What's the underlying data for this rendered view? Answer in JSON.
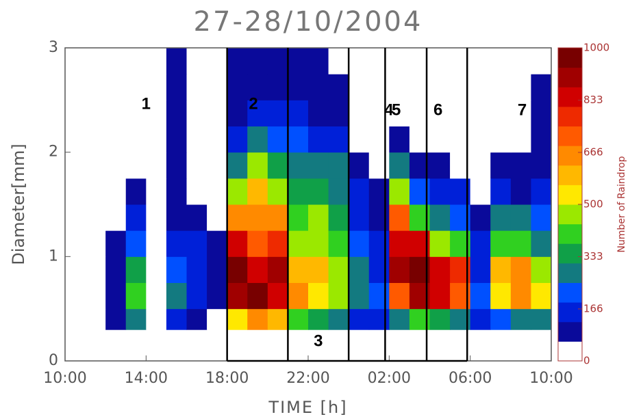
{
  "chart_data": {
    "type": "heatmap",
    "title": "27-28/10/2004",
    "x_label": "TIME [h]",
    "y_label": "Diameter[mm]",
    "colorbar_label": "Number of Raindrop",
    "xlim": [
      10,
      34
    ],
    "xticks": [
      {
        "value": 10,
        "label": "10:00"
      },
      {
        "value": 14,
        "label": "14:00"
      },
      {
        "value": 18,
        "label": "18:00"
      },
      {
        "value": 22,
        "label": "22:00"
      },
      {
        "value": 26,
        "label": "02:00"
      },
      {
        "value": 30,
        "label": "06:00"
      },
      {
        "value": 34,
        "label": "10:00"
      }
    ],
    "ylim": [
      0,
      3
    ],
    "yticks": [
      0,
      1,
      2,
      3
    ],
    "zlim": [
      0,
      1000
    ],
    "zticks": [
      0,
      166,
      333,
      500,
      666,
      833,
      1000
    ],
    "colors": [
      "#ffffff",
      "#0a0a9a",
      "#0020d8",
      "#0050ff",
      "#137a80",
      "#10a048",
      "#30d020",
      "#9be800",
      "#ffe800",
      "#ffb800",
      "#ff8a00",
      "#ff5a00",
      "#ee2a00",
      "#d00000",
      "#a00000",
      "#780000"
    ],
    "x_edges": [
      10,
      11,
      12,
      13,
      14,
      15,
      16,
      17,
      18,
      19,
      20,
      21,
      22,
      23,
      24,
      25,
      26,
      27,
      28,
      29,
      30,
      31,
      32,
      33,
      34
    ],
    "y_edges": [
      0.3,
      0.5,
      0.75,
      1,
      1.25,
      1.5,
      1.75,
      2,
      2.25,
      2.5,
      2.75,
      3
    ],
    "z": [
      [
        0,
        0,
        40,
        200,
        0,
        120,
        60,
        0,
        500,
        600,
        550,
        350,
        300,
        250,
        120,
        100,
        200,
        350,
        300,
        200,
        80,
        150,
        250,
        200
      ],
      [
        0,
        0,
        60,
        350,
        0,
        200,
        80,
        40,
        900,
        950,
        850,
        600,
        500,
        450,
        250,
        150,
        700,
        900,
        850,
        700,
        150,
        500,
        600,
        500
      ],
      [
        0,
        0,
        40,
        300,
        0,
        150,
        100,
        60,
        950,
        800,
        900,
        550,
        550,
        450,
        200,
        100,
        900,
        950,
        800,
        750,
        120,
        550,
        600,
        450
      ],
      [
        0,
        0,
        20,
        150,
        0,
        120,
        100,
        30,
        800,
        700,
        750,
        400,
        450,
        350,
        150,
        80,
        850,
        800,
        450,
        350,
        80,
        350,
        350,
        250
      ],
      [
        0,
        0,
        0,
        80,
        0,
        60,
        40,
        0,
        650,
        650,
        600,
        350,
        400,
        300,
        100,
        60,
        700,
        350,
        200,
        150,
        40,
        200,
        200,
        150
      ],
      [
        0,
        0,
        0,
        30,
        0,
        30,
        0,
        0,
        450,
        550,
        450,
        300,
        300,
        250,
        80,
        30,
        450,
        150,
        100,
        80,
        0,
        80,
        60,
        80
      ],
      [
        0,
        0,
        0,
        0,
        0,
        30,
        0,
        0,
        250,
        400,
        300,
        250,
        200,
        200,
        40,
        0,
        200,
        60,
        30,
        0,
        0,
        30,
        20,
        60
      ],
      [
        0,
        0,
        0,
        0,
        0,
        30,
        0,
        0,
        100,
        250,
        150,
        150,
        120,
        100,
        0,
        0,
        40,
        0,
        0,
        0,
        0,
        0,
        0,
        40
      ],
      [
        0,
        0,
        0,
        0,
        0,
        30,
        0,
        0,
        50,
        120,
        80,
        80,
        60,
        40,
        0,
        0,
        0,
        0,
        0,
        0,
        0,
        0,
        0,
        20
      ],
      [
        0,
        0,
        0,
        0,
        0,
        20,
        0,
        0,
        30,
        60,
        40,
        40,
        30,
        20,
        0,
        0,
        0,
        0,
        0,
        0,
        0,
        0,
        0,
        10
      ],
      [
        0,
        0,
        0,
        0,
        0,
        20,
        0,
        0,
        20,
        40,
        30,
        20,
        20,
        0,
        0,
        0,
        0,
        0,
        0,
        0,
        0,
        0,
        0,
        0
      ]
    ],
    "period_bounds": [
      18,
      21,
      24,
      25.8,
      27.85,
      29.85
    ],
    "periods": [
      "1",
      "2",
      "3",
      "4",
      "5",
      "6",
      "7"
    ]
  }
}
